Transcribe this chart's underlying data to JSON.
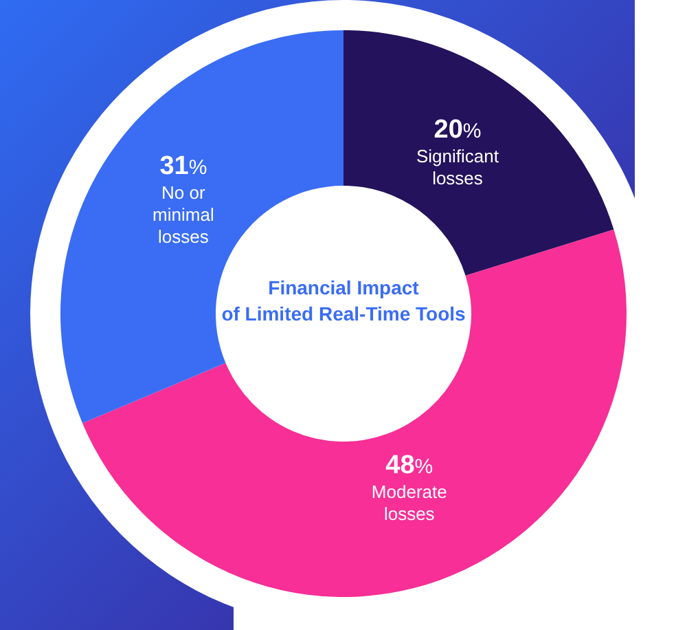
{
  "chart_data": {
    "type": "donut",
    "title": "Financial Impact\nof Limited Real-Time Tools",
    "categories": [
      "Significant\nlosses",
      "Moderate\nlosses",
      "No or\nminimal\nlosses"
    ],
    "values": [
      20,
      48,
      31
    ],
    "colors": [
      "#24125c",
      "#f72f96",
      "#3a6df4"
    ],
    "value_labels": [
      "20%",
      "48%",
      "31%"
    ]
  }
}
